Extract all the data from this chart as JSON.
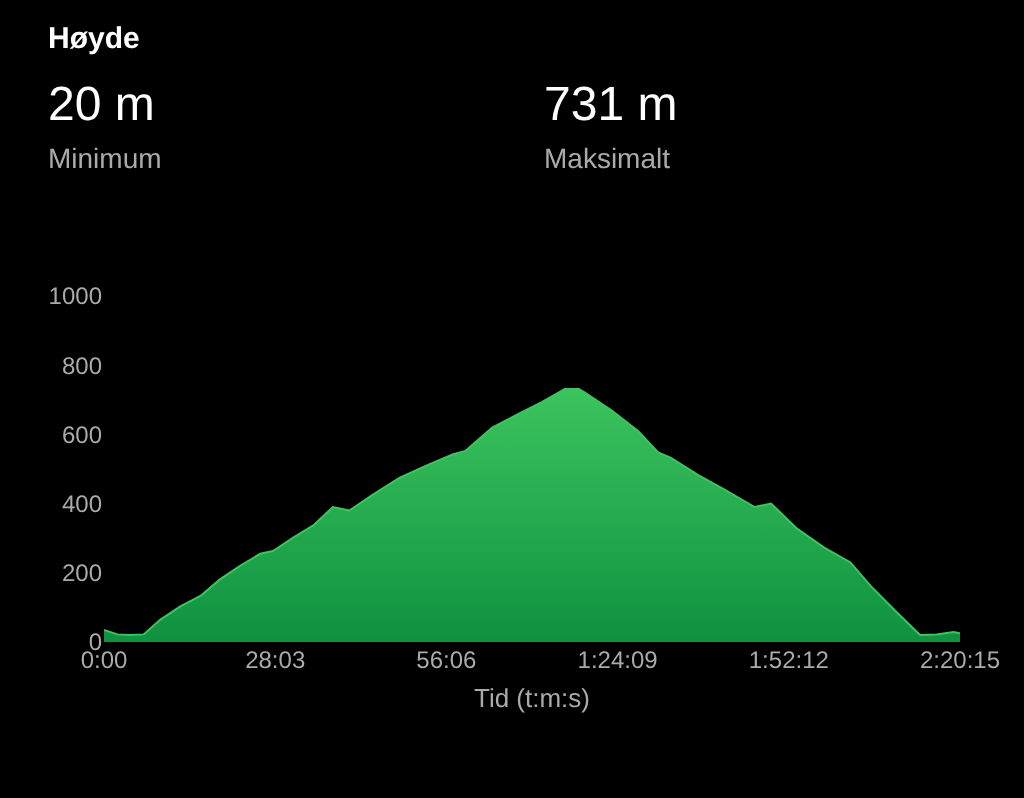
{
  "chart_data": {
    "type": "area",
    "title": "Høyde",
    "xlabel": "Tid (t:m:s)",
    "annotations": [
      "20 m",
      "Minimum",
      "731 m",
      "Maksimalt"
    ],
    "x": [
      0,
      2.2,
      4.3,
      6.5,
      9.2,
      12.5,
      15.8,
      19,
      22.3,
      25.6,
      27.7,
      31,
      34.3,
      37.5,
      40.2,
      44,
      48.4,
      52.7,
      57.1,
      59.2,
      63.6,
      67.9,
      71.8,
      75.5,
      77.8,
      78.8,
      83.2,
      87.5,
      90.8,
      92.9,
      97.3,
      101.6,
      106.6,
      109.3,
      113.6,
      118,
      122.3,
      125.6,
      130,
      133.7,
      136.4,
      139.2,
      140.25
    ],
    "series": [
      {
        "color": "#3cc45e",
        "values": [
          35,
          22,
          20,
          22,
          64,
          103,
          133,
          181,
          220,
          255,
          263,
          302,
          337,
          390,
          380,
          425,
          474,
          509,
          542,
          552,
          620,
          659,
          694,
          731,
          731,
          721,
          669,
          610,
          548,
          532,
          483,
          441,
          390,
          400,
          327,
          273,
          230,
          162,
          84,
          20,
          22,
          29,
          25
        ]
      }
    ],
    "xlim": [
      0,
      140.25
    ],
    "xticks": [
      {
        "value": 0,
        "label": "0:00"
      },
      {
        "value": 28.05,
        "label": "28:03"
      },
      {
        "value": 56.1,
        "label": "56:06"
      },
      {
        "value": 84.15,
        "label": "1:24:09"
      },
      {
        "value": 112.2,
        "label": "1:52:12"
      },
      {
        "value": 140.25,
        "label": "2:20:15"
      }
    ],
    "ylim": [
      0,
      1000
    ],
    "yticks": [
      0,
      200,
      400,
      600,
      800,
      1000
    ],
    "grid": false
  }
}
